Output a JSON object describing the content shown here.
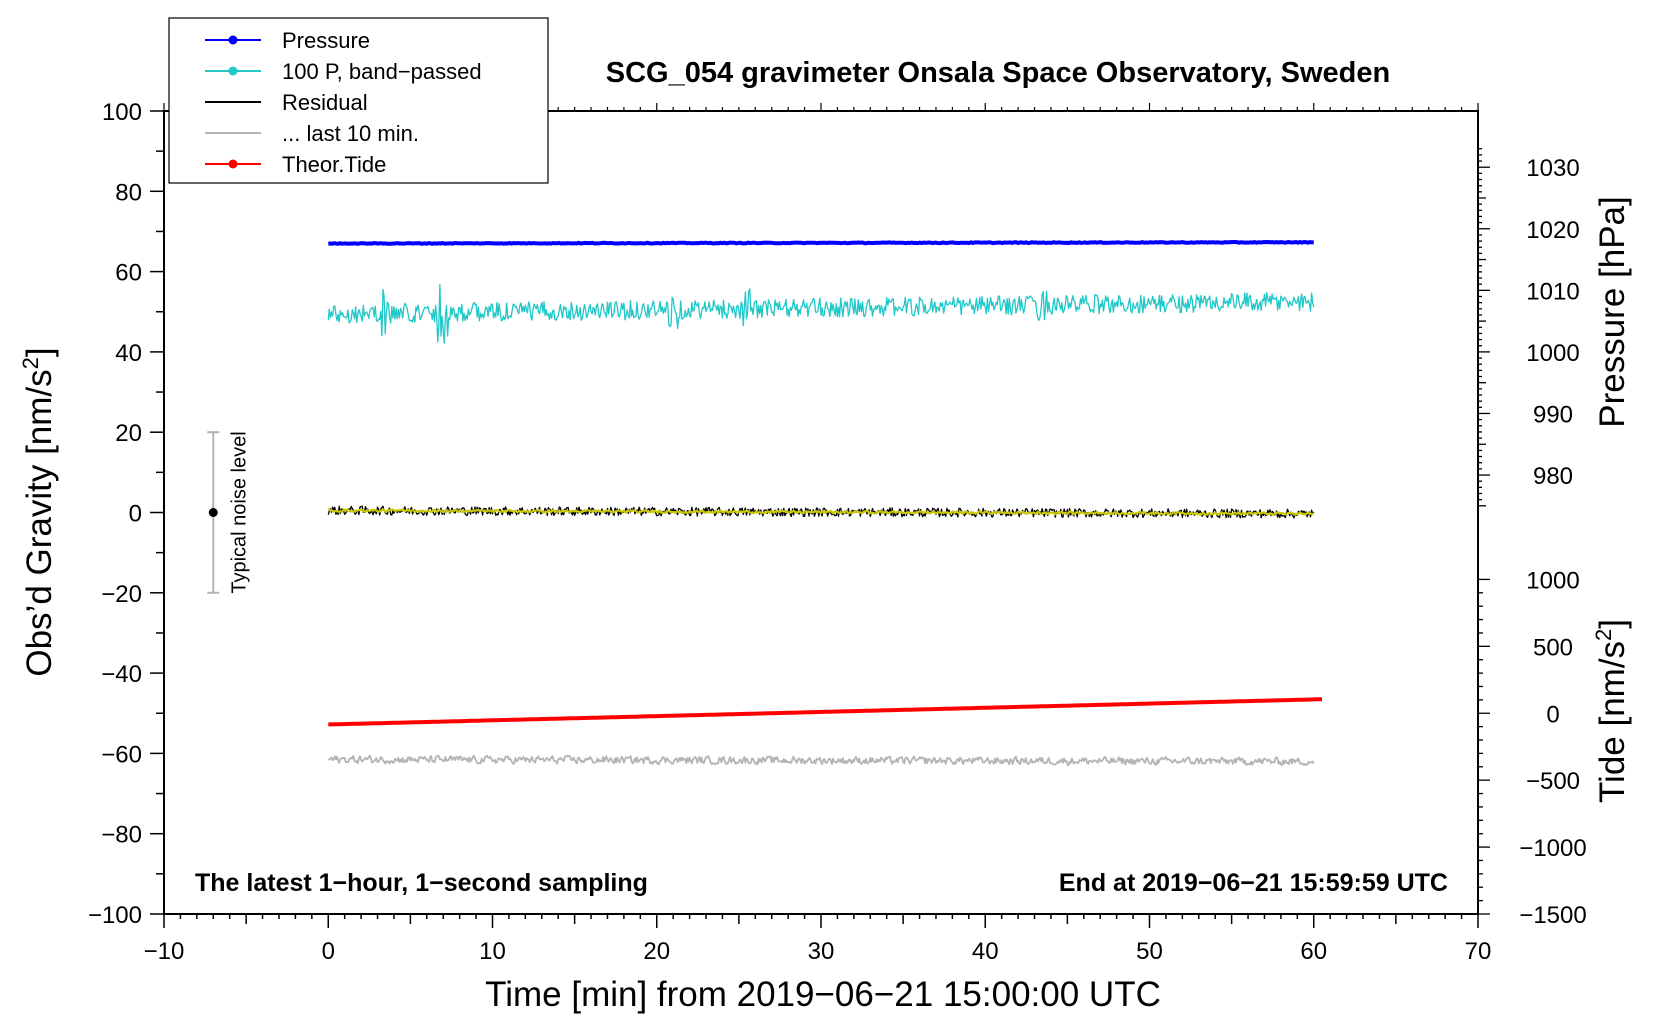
{
  "chart_data": {
    "type": "line",
    "title": "SCG_054 gravimeter Onsala Space Observatory, Sweden",
    "xlabel": "Time [min] from 2019−06−21 15:00:00 UTC",
    "ylabel": "Obs’d Gravity [nm/s²]",
    "ylabel_parts": {
      "main": "Obs’d Gravity [nm/s",
      "sup": "2",
      "end": "]"
    },
    "xlim": [
      -10,
      70
    ],
    "ylim": [
      -100,
      100
    ],
    "x_ticks": [
      -10,
      0,
      10,
      20,
      30,
      40,
      50,
      60,
      70
    ],
    "x_tick_labels": [
      "−10",
      "0",
      "10",
      "20",
      "30",
      "40",
      "50",
      "60",
      "70"
    ],
    "y_ticks": [
      -100,
      -80,
      -60,
      -40,
      -20,
      0,
      20,
      40,
      60,
      80,
      100
    ],
    "y_tick_labels": [
      "−100",
      "−80",
      "−60",
      "−40",
      "−20",
      "0",
      "20",
      "40",
      "60",
      "80",
      "100"
    ],
    "right_axes": [
      {
        "name": "pressure",
        "label": "Pressure [hPa]",
        "ticks": [
          980,
          990,
          1000,
          1010,
          1020,
          1030
        ],
        "tick_labels": [
          "980",
          "990",
          "1000",
          "1010",
          "1020",
          "1030"
        ],
        "map": {
          "value_a": 1000,
          "gravity_a": 40,
          "value_b": 1030,
          "gravity_b": 86
        }
      },
      {
        "name": "tide",
        "label_parts": {
          "main": "Tide [nm/s",
          "sup": "2",
          "end": "]"
        },
        "ticks": [
          -1500,
          -1000,
          -500,
          0,
          500,
          1000
        ],
        "tick_labels": [
          "−1500",
          "−1000",
          "−500",
          "0",
          "500",
          "1000"
        ],
        "map": {
          "value_a": 0,
          "gravity_a": -50,
          "value_b": -1500,
          "gravity_b": -100
        }
      }
    ],
    "series": [
      {
        "name": "Pressure",
        "color": "#0000ff",
        "style": "line-dot",
        "x_range": [
          0,
          60
        ],
        "level": 67.0,
        "drift": 0.3,
        "noise": 0.1,
        "width": 4
      },
      {
        "name": "100 P, band−passed",
        "color": "#20c8c8",
        "style": "line-dot",
        "x_range": [
          0,
          60
        ],
        "level": 49.5,
        "drift": 3.0,
        "noise": 2.4,
        "width": 1.3,
        "bursts": [
          [
            3.5,
            6
          ],
          [
            7.0,
            8
          ],
          [
            21.0,
            5
          ],
          [
            25.5,
            5
          ],
          [
            43.5,
            4
          ]
        ]
      },
      {
        "name": "Residual",
        "color": "#000000",
        "style": "line",
        "x_range": [
          0,
          60
        ],
        "level": 0.5,
        "drift": -0.8,
        "noise": 1.1,
        "width": 1.3
      },
      {
        "name": "Residual (smoothed)",
        "color": "#c8c800",
        "style": "line",
        "x_range": [
          0,
          60
        ],
        "level": 0.5,
        "drift": -0.8,
        "noise": 0.3,
        "width": 2.2
      },
      {
        "name": "... last 10 min.",
        "color": "#b4b4b4",
        "style": "line",
        "x_range": [
          0,
          60
        ],
        "level": -61.5,
        "drift": -0.5,
        "noise": 1.2,
        "width": 1.8
      },
      {
        "name": "Theor.Tide",
        "color": "#ff0000",
        "style": "line-dot",
        "x_range": [
          0,
          60.5
        ],
        "level": -52.8,
        "drift": 6.3,
        "noise": 0,
        "width": 4
      }
    ],
    "legend": [
      {
        "label": "Pressure",
        "color": "#0000ff",
        "marker": true
      },
      {
        "label": "100 P, band−passed",
        "color": "#20c8c8",
        "marker": true
      },
      {
        "label": "Residual",
        "color": "#000000",
        "marker": false
      },
      {
        "label": "... last 10 min.",
        "color": "#b4b4b4",
        "marker": false
      },
      {
        "label": "Theor.Tide",
        "color": "#ff0000",
        "marker": true
      }
    ],
    "legend_position": "top-left",
    "noise_bar": {
      "label": "Typical noise level",
      "x": -7,
      "center": 0,
      "low": -20,
      "high": 20,
      "color": "#b4b4b4"
    },
    "annotations": {
      "left": "The latest 1−hour, 1−second sampling",
      "right": "End at 2019−06−21 15:59:59 UTC"
    }
  }
}
